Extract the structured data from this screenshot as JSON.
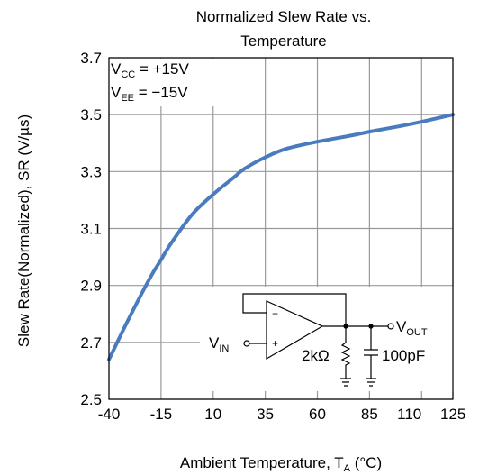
{
  "chart_data": {
    "type": "line",
    "title_line1": "Normalized Slew Rate vs.",
    "title_line2": "Temperature",
    "xlabel": {
      "main": "Ambient Temperature, T",
      "sub": "A",
      "tail": " (°C)"
    },
    "ylabel": "Slew Rate(Normalized), SR (V/µs)",
    "xlim": [
      -40,
      125
    ],
    "ylim": [
      2.5,
      3.7
    ],
    "x_ticks": [
      -40,
      -15,
      10,
      35,
      60,
      85,
      110,
      125
    ],
    "x_tick_labels": [
      "-40",
      "-15",
      "10",
      "35",
      "60",
      "85",
      "110",
      "125"
    ],
    "y_ticks": [
      2.5,
      2.7,
      2.9,
      3.1,
      3.3,
      3.5,
      3.7
    ],
    "y_tick_labels": [
      "2.5",
      "2.7",
      "2.9",
      "3.1",
      "3.3",
      "3.5",
      "3.7"
    ],
    "grid": true,
    "annotations": {
      "vcc": {
        "main": "V",
        "sub": "CC",
        "tail": " = +15V"
      },
      "vee": {
        "main": "V",
        "sub": "EE",
        "tail": " = −15V"
      }
    },
    "circuit": {
      "vin": {
        "main": "V",
        "sub": "IN"
      },
      "vout": {
        "main": "V",
        "sub": "OUT"
      },
      "resistor": "2kΩ",
      "capacitor": "100pF",
      "minus": "−",
      "plus": "+"
    },
    "series": [
      {
        "color": "#4a7bbf",
        "x": [
          -40,
          -30,
          -20,
          -15,
          -10,
          0,
          10,
          20,
          25,
          35,
          45,
          60,
          75,
          85,
          100,
          110,
          125
        ],
        "y": [
          2.64,
          2.79,
          2.93,
          2.99,
          3.05,
          3.15,
          3.22,
          3.28,
          3.31,
          3.35,
          3.38,
          3.405,
          3.425,
          3.44,
          3.46,
          3.475,
          3.5
        ]
      }
    ]
  }
}
